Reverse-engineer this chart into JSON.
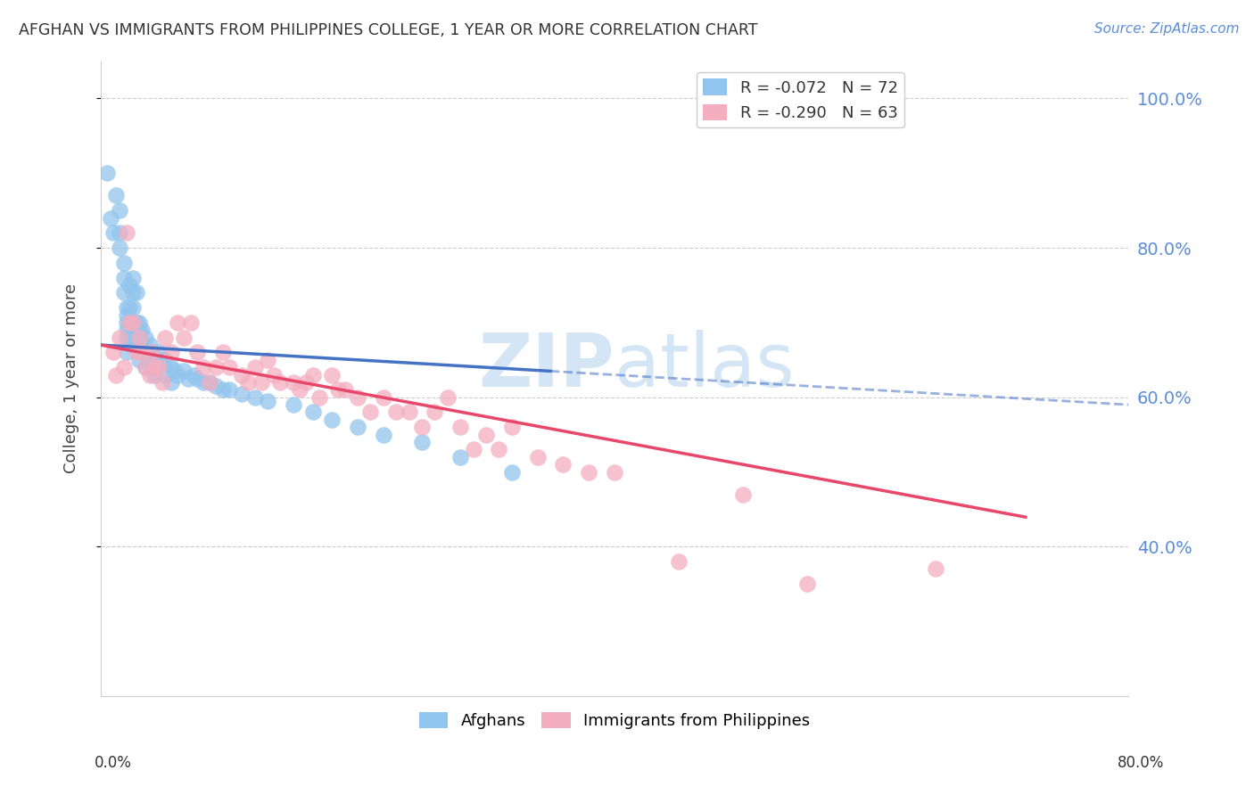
{
  "title": "AFGHAN VS IMMIGRANTS FROM PHILIPPINES COLLEGE, 1 YEAR OR MORE CORRELATION CHART",
  "source": "Source: ZipAtlas.com",
  "ylabel": "College, 1 year or more",
  "afghan_color": "#92C5ED",
  "afghan_line_color": "#4472C4",
  "phil_color": "#F4AEBF",
  "phil_line_color": "#E8476A",
  "watermark_color": "#D0E4F5",
  "background_color": "#FFFFFF",
  "grid_color": "#CCCCCC",
  "right_label_color": "#5B8DD9",
  "xlim": [
    0.0,
    0.8
  ],
  "ylim": [
    0.2,
    1.05
  ],
  "yticks": [
    0.4,
    0.6,
    0.8,
    1.0
  ],
  "afghan_R": -0.072,
  "afghan_N": 72,
  "phil_R": -0.29,
  "phil_N": 63,
  "afghan_scatter_x": [
    0.005,
    0.008,
    0.01,
    0.012,
    0.015,
    0.015,
    0.015,
    0.018,
    0.018,
    0.018,
    0.02,
    0.02,
    0.02,
    0.02,
    0.02,
    0.02,
    0.022,
    0.022,
    0.022,
    0.022,
    0.025,
    0.025,
    0.025,
    0.025,
    0.025,
    0.028,
    0.028,
    0.03,
    0.03,
    0.03,
    0.03,
    0.03,
    0.032,
    0.032,
    0.035,
    0.035,
    0.035,
    0.038,
    0.038,
    0.04,
    0.04,
    0.042,
    0.042,
    0.045,
    0.045,
    0.048,
    0.05,
    0.05,
    0.055,
    0.055,
    0.058,
    0.06,
    0.065,
    0.068,
    0.072,
    0.075,
    0.08,
    0.085,
    0.09,
    0.095,
    0.1,
    0.11,
    0.12,
    0.13,
    0.15,
    0.165,
    0.18,
    0.2,
    0.22,
    0.25,
    0.28,
    0.32
  ],
  "afghan_scatter_y": [
    0.9,
    0.84,
    0.82,
    0.87,
    0.85,
    0.82,
    0.8,
    0.78,
    0.76,
    0.74,
    0.72,
    0.71,
    0.7,
    0.69,
    0.68,
    0.66,
    0.75,
    0.72,
    0.7,
    0.68,
    0.76,
    0.74,
    0.72,
    0.7,
    0.68,
    0.74,
    0.7,
    0.7,
    0.69,
    0.68,
    0.67,
    0.65,
    0.69,
    0.67,
    0.68,
    0.66,
    0.64,
    0.67,
    0.65,
    0.66,
    0.64,
    0.65,
    0.63,
    0.66,
    0.64,
    0.65,
    0.65,
    0.63,
    0.64,
    0.62,
    0.635,
    0.63,
    0.635,
    0.625,
    0.63,
    0.625,
    0.62,
    0.62,
    0.615,
    0.61,
    0.61,
    0.605,
    0.6,
    0.595,
    0.59,
    0.58,
    0.57,
    0.56,
    0.55,
    0.54,
    0.52,
    0.5
  ],
  "phil_scatter_x": [
    0.01,
    0.012,
    0.015,
    0.018,
    0.02,
    0.022,
    0.025,
    0.028,
    0.03,
    0.032,
    0.035,
    0.038,
    0.04,
    0.042,
    0.045,
    0.048,
    0.05,
    0.055,
    0.06,
    0.065,
    0.07,
    0.075,
    0.08,
    0.085,
    0.09,
    0.095,
    0.1,
    0.11,
    0.115,
    0.12,
    0.125,
    0.13,
    0.135,
    0.14,
    0.15,
    0.155,
    0.16,
    0.165,
    0.17,
    0.18,
    0.185,
    0.19,
    0.2,
    0.21,
    0.22,
    0.23,
    0.24,
    0.25,
    0.26,
    0.27,
    0.28,
    0.29,
    0.3,
    0.31,
    0.32,
    0.34,
    0.36,
    0.38,
    0.4,
    0.45,
    0.5,
    0.55,
    0.65
  ],
  "phil_scatter_y": [
    0.66,
    0.63,
    0.68,
    0.64,
    0.82,
    0.7,
    0.7,
    0.66,
    0.68,
    0.66,
    0.64,
    0.63,
    0.66,
    0.64,
    0.64,
    0.62,
    0.68,
    0.66,
    0.7,
    0.68,
    0.7,
    0.66,
    0.64,
    0.62,
    0.64,
    0.66,
    0.64,
    0.63,
    0.62,
    0.64,
    0.62,
    0.65,
    0.63,
    0.62,
    0.62,
    0.61,
    0.62,
    0.63,
    0.6,
    0.63,
    0.61,
    0.61,
    0.6,
    0.58,
    0.6,
    0.58,
    0.58,
    0.56,
    0.58,
    0.6,
    0.56,
    0.53,
    0.55,
    0.53,
    0.56,
    0.52,
    0.51,
    0.5,
    0.5,
    0.38,
    0.47,
    0.35,
    0.37
  ]
}
